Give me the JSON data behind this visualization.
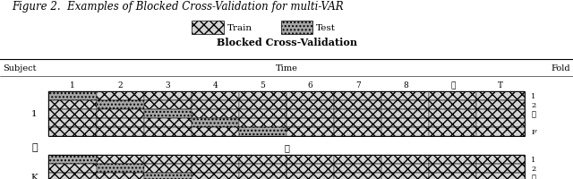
{
  "title_figure": "Figure 2.  Examples of Blocked Cross-Validation for multi-VAR",
  "legend_train_label": "Train",
  "legend_test_label": "Test",
  "panel_title": "Blocked Cross-Validation",
  "col_subject": "Subject",
  "col_time": "Time",
  "col_fold": "Fold",
  "time_ticks": [
    "1",
    "2",
    "3",
    "4",
    "5",
    "6",
    "7",
    "8",
    "⋯",
    "T"
  ],
  "n_folds": 5,
  "n_blocks": 10,
  "train_facecolor": "#d4d4d4",
  "test_facecolor": "#a8a8a8",
  "bg_color": "white"
}
